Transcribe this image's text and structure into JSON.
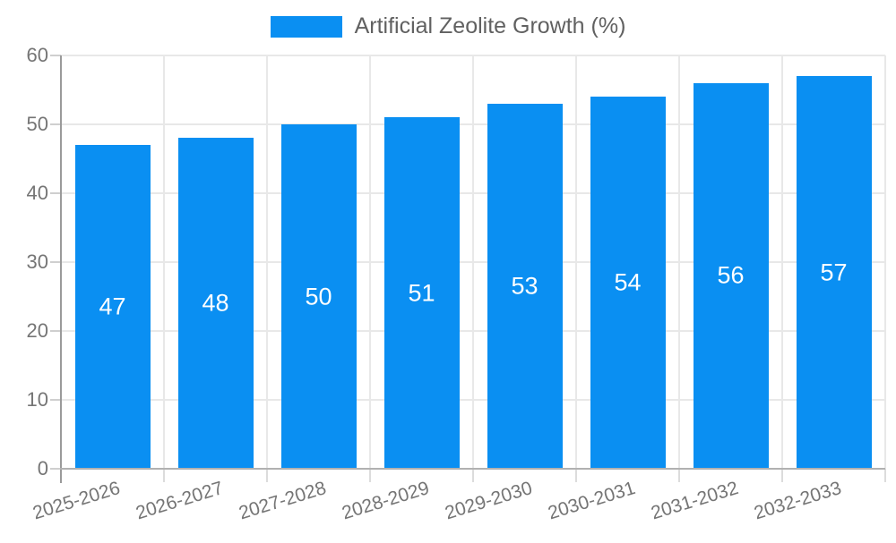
{
  "legend": {
    "label": "Artificial Zeolite Growth (%)"
  },
  "chart_data": {
    "type": "bar",
    "title": "Artificial Zeolite Growth (%)",
    "categories": [
      "2025-2026",
      "2026-2027",
      "2027-2028",
      "2028-2029",
      "2029-2030",
      "2030-2031",
      "2031-2032",
      "2032-2033"
    ],
    "series": [
      {
        "name": "Artificial Zeolite Growth (%)",
        "values": [
          47,
          48,
          50,
          51,
          53,
          54,
          56,
          57
        ]
      }
    ],
    "value_labels": [
      "47",
      "48",
      "50",
      "51",
      "53",
      "54",
      "56",
      "57"
    ],
    "xlabel": "",
    "ylabel": "",
    "ylim": [
      0,
      60
    ],
    "ytick_step": 10,
    "yticks": [
      "0",
      "10",
      "20",
      "30",
      "40",
      "50",
      "60"
    ],
    "grid": true,
    "legend_position": "top-center",
    "x_label_rotation_deg": -17,
    "colors": {
      "bar": "#0a8ff2",
      "value_label": "#ffffff",
      "axis_text": "#757575",
      "legend_text": "#616161",
      "grid": "#e8e8e8",
      "axis_line": "#9a9a9a",
      "baseline": "#b1b1b1"
    }
  }
}
